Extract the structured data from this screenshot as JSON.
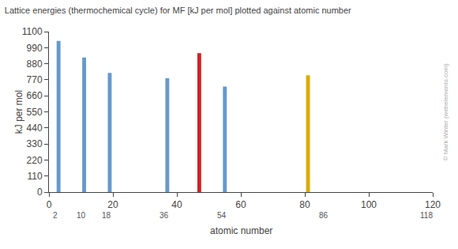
{
  "chart_data": {
    "type": "bar",
    "title": "Lattice energies (thermochemical cycle) for MF [kJ per mol] plotted against atomic number",
    "ylabel": "kJ per mol",
    "xlabel": "atomic number",
    "x": [
      3,
      11,
      19,
      37,
      47,
      55,
      81
    ],
    "values": [
      1037,
      923,
      817,
      780,
      953,
      724,
      800
    ],
    "colors": [
      "#6699cc",
      "#6699cc",
      "#6699cc",
      "#6699cc",
      "#cc2222",
      "#6699cc",
      "#ddaa00"
    ],
    "xlim": [
      0,
      120
    ],
    "xticks": [
      0,
      20,
      40,
      60,
      80,
      100,
      120
    ],
    "ylim": [
      0,
      1100
    ],
    "yticks": [
      0,
      110,
      220,
      330,
      440,
      550,
      660,
      770,
      880,
      990,
      1100
    ],
    "grid": false,
    "annotations": [
      {
        "text": "2",
        "x": 2
      },
      {
        "text": "10",
        "x": 10
      },
      {
        "text": "18",
        "x": 18
      },
      {
        "text": "36",
        "x": 36
      },
      {
        "text": "54",
        "x": 54
      },
      {
        "text": "86",
        "x": 86
      },
      {
        "text": "118",
        "x": 118
      },
      {
        "text": "© Mark Winter (webelements.com)"
      }
    ]
  }
}
